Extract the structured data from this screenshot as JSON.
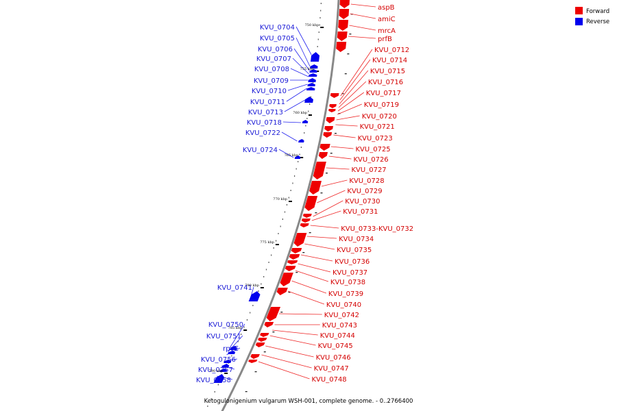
{
  "caption": "Ketogulonigenium vulgarum WSH-001, complete genome. - 0..2766400",
  "legend": [
    {
      "label": "Forward",
      "color": "#ee0000"
    },
    {
      "label": "Reverse",
      "color": "#0000ee"
    }
  ],
  "ticks": [
    "750 kbp",
    "755 kbp",
    "760 kbp",
    "765 kbp",
    "770 kbp",
    "775 kbp",
    "780 kbp",
    "785 kbp",
    "790 kbp"
  ],
  "forward_labels": [
    "aspB",
    "amiC",
    "mrcA",
    "prfB",
    "KVU_0712",
    "KVU_0714",
    "KVU_0715",
    "KVU_0716",
    "KVU_0717",
    "KVU_0719",
    "KVU_0720",
    "KVU_0721",
    "KVU_0723",
    "KVU_0725",
    "KVU_0726",
    "KVU_0727",
    "KVU_0728",
    "KVU_0729",
    "KVU_0730",
    "KVU_0731",
    "KVU_0733-KVU_0732",
    "KVU_0734",
    "KVU_0735",
    "KVU_0736",
    "KVU_0737",
    "KVU_0738",
    "KVU_0739",
    "KVU_0740",
    "KVU_0742",
    "KVU_0743",
    "KVU_0744",
    "KVU_0745",
    "KVU_0746",
    "KVU_0747",
    "KVU_0748"
  ],
  "reverse_labels": [
    "KVU_0704",
    "KVU_0705",
    "KVU_0706",
    "KVU_0707",
    "KVU_0708",
    "KVU_0709",
    "KVU_0710",
    "KVU_0711",
    "KVU_0713",
    "KVU_0718",
    "KVU_0722",
    "KVU_0724",
    "KVU_0741",
    "KVU_0750",
    "KVU_0751",
    "rpoE",
    "KVU_0756",
    "KVU_0757",
    "KVU_0758"
  ]
}
